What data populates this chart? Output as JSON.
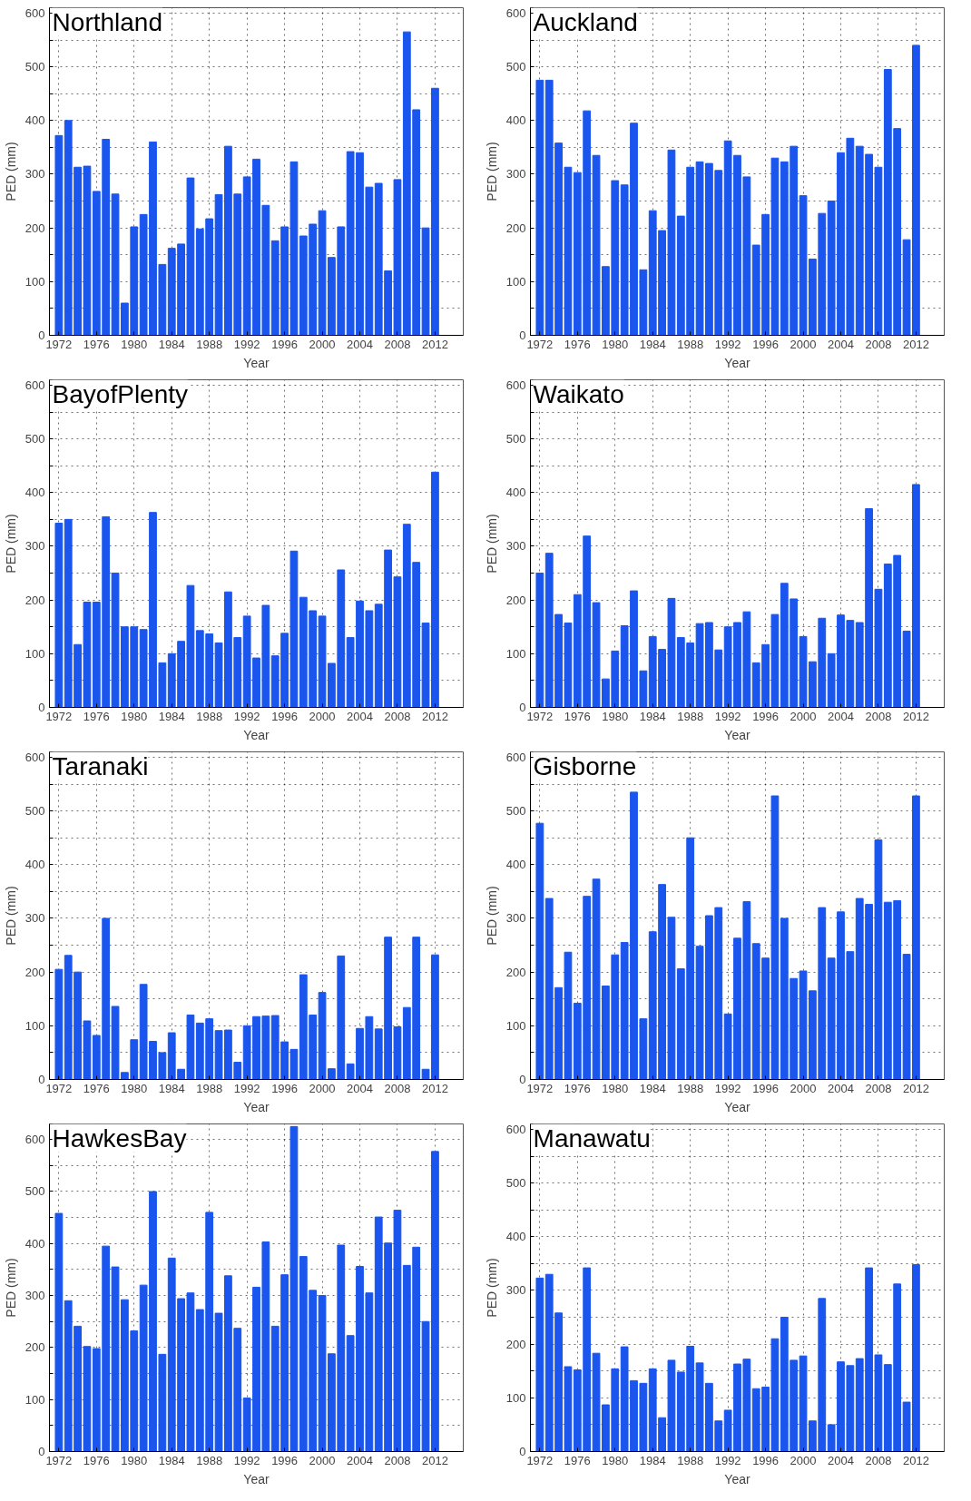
{
  "chart_data": [
    {
      "type": "bar",
      "title": "Northland",
      "xlabel": "Year",
      "ylabel": "PED (mm)",
      "color": "#1a55ee",
      "grid": true,
      "xlim": [
        1971,
        2015
      ],
      "ylim": [
        0,
        610
      ],
      "xticks": [
        1972,
        1976,
        1980,
        1984,
        1988,
        1992,
        1996,
        2000,
        2004,
        2008,
        2012
      ],
      "yticks": [
        0,
        {
          "value": 50,
          "label": null
        },
        100,
        {
          "value": 150,
          "label": null
        },
        200,
        {
          "value": 250,
          "label": null
        },
        300,
        {
          "value": 350,
          "label": null
        },
        400,
        {
          "value": 450,
          "label": null
        },
        500,
        {
          "value": 550,
          "label": null
        },
        600
      ],
      "x": [
        1972,
        1973,
        1974,
        1975,
        1976,
        1977,
        1978,
        1979,
        1980,
        1981,
        1982,
        1983,
        1984,
        1985,
        1986,
        1987,
        1988,
        1989,
        1990,
        1991,
        1992,
        1993,
        1994,
        1995,
        1996,
        1997,
        1998,
        1999,
        2000,
        2001,
        2002,
        2003,
        2004,
        2005,
        2006,
        2007,
        2008,
        2009,
        2010,
        2011,
        2012
      ],
      "values": [
        372,
        400,
        313,
        315,
        268,
        365,
        263,
        60,
        202,
        225,
        360,
        132,
        162,
        170,
        293,
        198,
        217,
        262,
        352,
        263,
        295,
        328,
        242,
        176,
        202,
        323,
        185,
        207,
        232,
        145,
        202,
        342,
        340,
        276,
        283,
        120,
        290,
        565,
        420,
        200,
        460
      ]
    },
    {
      "type": "bar",
      "title": "Auckland",
      "xlabel": "Year",
      "ylabel": "PED (mm)",
      "color": "#1a55ee",
      "grid": true,
      "xlim": [
        1971,
        2015
      ],
      "ylim": [
        0,
        610
      ],
      "xticks": [
        1972,
        1976,
        1980,
        1984,
        1988,
        1992,
        1996,
        2000,
        2004,
        2008,
        2012
      ],
      "yticks": [
        0,
        {
          "value": 50,
          "label": null
        },
        100,
        {
          "value": 150,
          "label": null
        },
        200,
        {
          "value": 250,
          "label": null
        },
        300,
        {
          "value": 350,
          "label": null
        },
        400,
        {
          "value": 450,
          "label": null
        },
        500,
        {
          "value": 550,
          "label": null
        },
        600
      ],
      "x": [
        1972,
        1973,
        1974,
        1975,
        1976,
        1977,
        1978,
        1979,
        1980,
        1981,
        1982,
        1983,
        1984,
        1985,
        1986,
        1987,
        1988,
        1989,
        1990,
        1991,
        1992,
        1993,
        1994,
        1995,
        1996,
        1997,
        1998,
        1999,
        2000,
        2001,
        2002,
        2003,
        2004,
        2005,
        2006,
        2007,
        2008,
        2009,
        2010,
        2011,
        2012
      ],
      "values": [
        475,
        475,
        358,
        313,
        303,
        418,
        335,
        128,
        288,
        280,
        395,
        122,
        232,
        195,
        345,
        222,
        313,
        323,
        320,
        307,
        362,
        335,
        295,
        168,
        225,
        330,
        323,
        352,
        260,
        142,
        227,
        250,
        340,
        367,
        352,
        337,
        313,
        495,
        385,
        178,
        540
      ]
    },
    {
      "type": "bar",
      "title": "BayofPlenty",
      "xlabel": "Year",
      "ylabel": "PED (mm)",
      "color": "#1a55ee",
      "grid": true,
      "xlim": [
        1971,
        2015
      ],
      "ylim": [
        0,
        610
      ],
      "xticks": [
        1972,
        1976,
        1980,
        1984,
        1988,
        1992,
        1996,
        2000,
        2004,
        2008,
        2012
      ],
      "yticks": [
        0,
        {
          "value": 50,
          "label": null
        },
        100,
        {
          "value": 150,
          "label": null
        },
        200,
        {
          "value": 250,
          "label": null
        },
        300,
        {
          "value": 350,
          "label": null
        },
        400,
        {
          "value": 450,
          "label": null
        },
        500,
        {
          "value": 550,
          "label": null
        },
        600
      ],
      "x": [
        1972,
        1973,
        1974,
        1975,
        1976,
        1977,
        1978,
        1979,
        1980,
        1981,
        1982,
        1983,
        1984,
        1985,
        1986,
        1987,
        1988,
        1989,
        1990,
        1991,
        1992,
        1993,
        1994,
        1995,
        1996,
        1997,
        1998,
        1999,
        2000,
        2001,
        2002,
        2003,
        2004,
        2005,
        2006,
        2007,
        2008,
        2009,
        2010,
        2011,
        2012
      ],
      "values": [
        343,
        350,
        117,
        196,
        196,
        355,
        250,
        150,
        150,
        145,
        363,
        83,
        100,
        123,
        227,
        143,
        137,
        120,
        215,
        130,
        170,
        92,
        190,
        96,
        138,
        291,
        205,
        180,
        170,
        82,
        256,
        130,
        198,
        180,
        192,
        293,
        243,
        341,
        270,
        157,
        438
      ]
    },
    {
      "type": "bar",
      "title": "Waikato",
      "xlabel": "Year",
      "ylabel": "PED (mm)",
      "color": "#1a55ee",
      "grid": true,
      "xlim": [
        1971,
        2015
      ],
      "ylim": [
        0,
        610
      ],
      "xticks": [
        1972,
        1976,
        1980,
        1984,
        1988,
        1992,
        1996,
        2000,
        2004,
        2008,
        2012
      ],
      "yticks": [
        0,
        {
          "value": 50,
          "label": null
        },
        100,
        {
          "value": 150,
          "label": null
        },
        200,
        {
          "value": 250,
          "label": null
        },
        300,
        {
          "value": 350,
          "label": null
        },
        400,
        {
          "value": 450,
          "label": null
        },
        500,
        {
          "value": 550,
          "label": null
        },
        600
      ],
      "x": [
        1972,
        1973,
        1974,
        1975,
        1976,
        1977,
        1978,
        1979,
        1980,
        1981,
        1982,
        1983,
        1984,
        1985,
        1986,
        1987,
        1988,
        1989,
        1990,
        1991,
        1992,
        1993,
        1994,
        1995,
        1996,
        1997,
        1998,
        1999,
        2000,
        2001,
        2002,
        2003,
        2004,
        2005,
        2006,
        2007,
        2008,
        2009,
        2010,
        2011,
        2012
      ],
      "values": [
        250,
        287,
        173,
        157,
        210,
        319,
        195,
        53,
        105,
        152,
        217,
        68,
        132,
        108,
        203,
        130,
        120,
        156,
        158,
        107,
        150,
        158,
        178,
        83,
        117,
        173,
        231,
        202,
        132,
        85,
        166,
        100,
        172,
        162,
        158,
        370,
        220,
        267,
        283,
        142,
        415
      ]
    },
    {
      "type": "bar",
      "title": "Taranaki",
      "xlabel": "Year",
      "ylabel": "PED (mm)",
      "color": "#1a55ee",
      "grid": true,
      "xlim": [
        1971,
        2015
      ],
      "ylim": [
        0,
        610
      ],
      "xticks": [
        1972,
        1976,
        1980,
        1984,
        1988,
        1992,
        1996,
        2000,
        2004,
        2008,
        2012
      ],
      "yticks": [
        0,
        {
          "value": 50,
          "label": null
        },
        100,
        {
          "value": 150,
          "label": null
        },
        200,
        {
          "value": 250,
          "label": null
        },
        300,
        {
          "value": 350,
          "label": null
        },
        400,
        {
          "value": 450,
          "label": null
        },
        500,
        {
          "value": 550,
          "label": null
        },
        600
      ],
      "x": [
        1972,
        1973,
        1974,
        1975,
        1976,
        1977,
        1978,
        1979,
        1980,
        1981,
        1982,
        1983,
        1984,
        1985,
        1986,
        1987,
        1988,
        1989,
        1990,
        1991,
        1992,
        1993,
        1994,
        1995,
        1996,
        1997,
        1998,
        1999,
        2000,
        2001,
        2002,
        2003,
        2004,
        2005,
        2006,
        2007,
        2008,
        2009,
        2010,
        2011,
        2012
      ],
      "values": [
        205,
        231,
        200,
        109,
        82,
        300,
        136,
        13,
        74,
        177,
        71,
        50,
        87,
        19,
        120,
        105,
        113,
        91,
        92,
        32,
        100,
        117,
        118,
        119,
        70,
        56,
        195,
        120,
        162,
        20,
        230,
        29,
        95,
        117,
        94,
        265,
        98,
        134,
        265,
        19,
        232
      ]
    },
    {
      "type": "bar",
      "title": "Gisborne",
      "xlabel": "Year",
      "ylabel": "PED (mm)",
      "color": "#1a55ee",
      "grid": true,
      "xlim": [
        1971,
        2015
      ],
      "ylim": [
        0,
        610
      ],
      "xticks": [
        1972,
        1976,
        1980,
        1984,
        1988,
        1992,
        1996,
        2000,
        2004,
        2008,
        2012
      ],
      "yticks": [
        0,
        {
          "value": 50,
          "label": null
        },
        100,
        {
          "value": 150,
          "label": null
        },
        200,
        {
          "value": 250,
          "label": null
        },
        300,
        {
          "value": 350,
          "label": null
        },
        400,
        {
          "value": 450,
          "label": null
        },
        500,
        {
          "value": 550,
          "label": null
        },
        600
      ],
      "x": [
        1972,
        1973,
        1974,
        1975,
        1976,
        1977,
        1978,
        1979,
        1980,
        1981,
        1982,
        1983,
        1984,
        1985,
        1986,
        1987,
        1988,
        1989,
        1990,
        1991,
        1992,
        1993,
        1994,
        1995,
        1996,
        1997,
        1998,
        1999,
        2000,
        2001,
        2002,
        2003,
        2004,
        2005,
        2006,
        2007,
        2008,
        2009,
        2010,
        2011,
        2012
      ],
      "values": [
        477,
        337,
        171,
        237,
        142,
        341,
        373,
        174,
        232,
        255,
        535,
        113,
        275,
        363,
        302,
        206,
        450,
        248,
        305,
        320,
        122,
        263,
        331,
        253,
        226,
        528,
        300,
        188,
        202,
        165,
        320,
        226,
        312,
        238,
        337,
        326,
        446,
        330,
        333,
        233,
        528
      ]
    },
    {
      "type": "bar",
      "title": "HawkesBay",
      "xlabel": "Year",
      "ylabel": "PED (mm)",
      "color": "#1a55ee",
      "grid": true,
      "xlim": [
        1971,
        2015
      ],
      "ylim": [
        0,
        630
      ],
      "xticks": [
        1972,
        1976,
        1980,
        1984,
        1988,
        1992,
        1996,
        2000,
        2004,
        2008,
        2012
      ],
      "yticks": [
        0,
        {
          "value": 50,
          "label": null
        },
        100,
        {
          "value": 150,
          "label": null
        },
        200,
        {
          "value": 250,
          "label": null
        },
        300,
        {
          "value": 350,
          "label": null
        },
        400,
        {
          "value": 450,
          "label": null
        },
        500,
        {
          "value": 550,
          "label": null
        },
        600
      ],
      "x": [
        1972,
        1973,
        1974,
        1975,
        1976,
        1977,
        1978,
        1979,
        1980,
        1981,
        1982,
        1983,
        1984,
        1985,
        1986,
        1987,
        1988,
        1989,
        1990,
        1991,
        1992,
        1993,
        1994,
        1995,
        1996,
        1997,
        1998,
        1999,
        2000,
        2001,
        2002,
        2003,
        2004,
        2005,
        2006,
        2007,
        2008,
        2009,
        2010,
        2011,
        2012
      ],
      "values": [
        458,
        290,
        241,
        202,
        198,
        395,
        355,
        292,
        232,
        320,
        500,
        187,
        372,
        294,
        305,
        273,
        460,
        266,
        338,
        237,
        103,
        316,
        403,
        241,
        340,
        625,
        375,
        310,
        300,
        188,
        397,
        223,
        356,
        305,
        451,
        401,
        464,
        358,
        393,
        250,
        577
      ]
    },
    {
      "type": "bar",
      "title": "Manawatu",
      "xlabel": "Year",
      "ylabel": "PED (mm)",
      "color": "#1a55ee",
      "grid": true,
      "xlim": [
        1971,
        2015
      ],
      "ylim": [
        0,
        610
      ],
      "xticks": [
        1972,
        1976,
        1980,
        1984,
        1988,
        1992,
        1996,
        2000,
        2004,
        2008,
        2012
      ],
      "yticks": [
        0,
        {
          "value": 50,
          "label": null
        },
        100,
        {
          "value": 150,
          "label": null
        },
        200,
        {
          "value": 250,
          "label": null
        },
        300,
        {
          "value": 350,
          "label": null
        },
        400,
        {
          "value": 450,
          "label": null
        },
        500,
        {
          "value": 550,
          "label": null
        },
        600
      ],
      "x": [
        1972,
        1973,
        1974,
        1975,
        1976,
        1977,
        1978,
        1979,
        1980,
        1981,
        1982,
        1983,
        1984,
        1985,
        1986,
        1987,
        1988,
        1989,
        1990,
        1991,
        1992,
        1993,
        1994,
        1995,
        1996,
        1997,
        1998,
        1999,
        2000,
        2001,
        2002,
        2003,
        2004,
        2005,
        2006,
        2007,
        2008,
        2009,
        2010,
        2011,
        2012
      ],
      "values": [
        323,
        330,
        258,
        158,
        152,
        342,
        183,
        87,
        154,
        195,
        132,
        127,
        154,
        63,
        170,
        148,
        196,
        165,
        127,
        57,
        77,
        163,
        172,
        117,
        120,
        210,
        250,
        170,
        178,
        57,
        285,
        50,
        167,
        160,
        173,
        342,
        180,
        162,
        312,
        92,
        348
      ]
    }
  ]
}
